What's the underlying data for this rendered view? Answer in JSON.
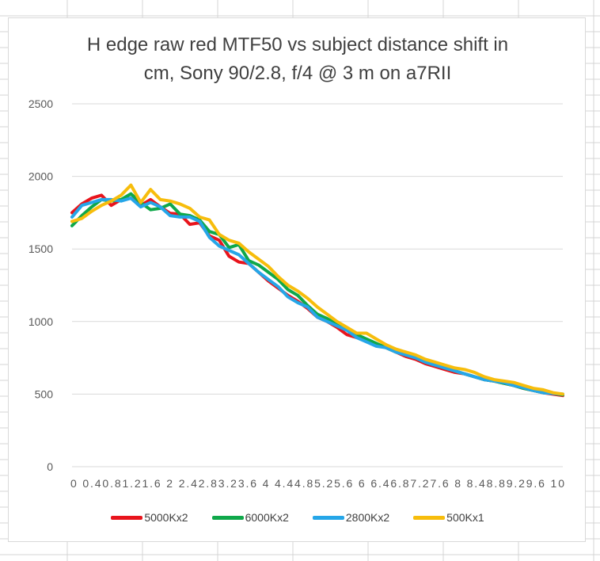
{
  "chart_data": {
    "type": "line",
    "title": "H edge raw red MTF50 vs subject distance shift in\ncm, Sony 90/2.8,  f/4 @ 3  m on a7RII",
    "xlabel": "",
    "ylabel": "",
    "ylim": [
      0,
      2500
    ],
    "yticks": [
      0,
      500,
      1000,
      1500,
      2000,
      2500
    ],
    "x": [
      0,
      0.2,
      0.4,
      0.6,
      0.8,
      1,
      1.2,
      1.4,
      1.6,
      1.8,
      2,
      2.2,
      2.4,
      2.6,
      2.8,
      3,
      3.2,
      3.4,
      3.6,
      3.8,
      4,
      4.2,
      4.4,
      4.6,
      4.8,
      5,
      5.2,
      5.4,
      5.6,
      5.8,
      6,
      6.2,
      6.4,
      6.6,
      6.8,
      7,
      7.2,
      7.4,
      7.6,
      7.8,
      8,
      8.2,
      8.4,
      8.6,
      8.8,
      9,
      9.2,
      9.4,
      9.6,
      9.8,
      10
    ],
    "x_tick_labels": "0  0.40.81.21.6   2   2.42.83.23.6   4   4.44.85.25.6   6   6.46.87.27.6   8   8.48.89.29.6  10",
    "grid": true,
    "legend_position": "bottom",
    "series": [
      {
        "name": "5000Kx2",
        "color": "#e8141c",
        "values": [
          1750,
          1810,
          1850,
          1870,
          1800,
          1840,
          1850,
          1800,
          1840,
          1790,
          1745,
          1740,
          1670,
          1680,
          1590,
          1560,
          1450,
          1410,
          1400,
          1340,
          1280,
          1230,
          1180,
          1140,
          1090,
          1030,
          1000,
          960,
          910,
          890,
          870,
          840,
          820,
          790,
          760,
          740,
          710,
          690,
          670,
          650,
          640,
          620,
          600,
          590,
          575,
          560,
          540,
          525,
          510,
          500,
          490
        ]
      },
      {
        "name": "6000Kx2",
        "color": "#0fa84a",
        "values": [
          1660,
          1730,
          1790,
          1840,
          1830,
          1840,
          1880,
          1820,
          1770,
          1780,
          1810,
          1740,
          1730,
          1700,
          1620,
          1600,
          1510,
          1530,
          1420,
          1390,
          1340,
          1290,
          1220,
          1180,
          1110,
          1050,
          1020,
          980,
          950,
          910,
          880,
          850,
          820,
          790,
          770,
          750,
          720,
          700,
          680,
          660,
          640,
          620,
          600,
          590,
          575,
          560,
          540,
          525,
          510,
          505,
          495
        ]
      },
      {
        "name": "2800Kx2",
        "color": "#25a6e8",
        "values": [
          1720,
          1800,
          1820,
          1840,
          1840,
          1830,
          1850,
          1790,
          1820,
          1790,
          1730,
          1720,
          1720,
          1690,
          1580,
          1520,
          1490,
          1460,
          1400,
          1340,
          1290,
          1240,
          1170,
          1130,
          1100,
          1030,
          1000,
          970,
          940,
          890,
          860,
          830,
          820,
          790,
          770,
          750,
          720,
          700,
          680,
          660,
          640,
          620,
          600,
          590,
          580,
          560,
          545,
          525,
          510,
          505,
          500
        ]
      },
      {
        "name": "500Kx1",
        "color": "#f7bd0c",
        "values": [
          1690,
          1710,
          1760,
          1800,
          1830,
          1870,
          1940,
          1820,
          1910,
          1840,
          1830,
          1810,
          1780,
          1720,
          1700,
          1600,
          1560,
          1540,
          1480,
          1430,
          1380,
          1310,
          1250,
          1210,
          1160,
          1100,
          1050,
          1000,
          960,
          920,
          920,
          880,
          840,
          810,
          790,
          770,
          740,
          720,
          700,
          680,
          670,
          650,
          620,
          600,
          590,
          580,
          560,
          540,
          530,
          510,
          500
        ]
      }
    ]
  },
  "sheet": {
    "grid_color": "#d4d4d4",
    "chart_border_color": "#d9d9d9",
    "gridline_color": "#d9d9d9",
    "axis_text_color": "#595959"
  }
}
